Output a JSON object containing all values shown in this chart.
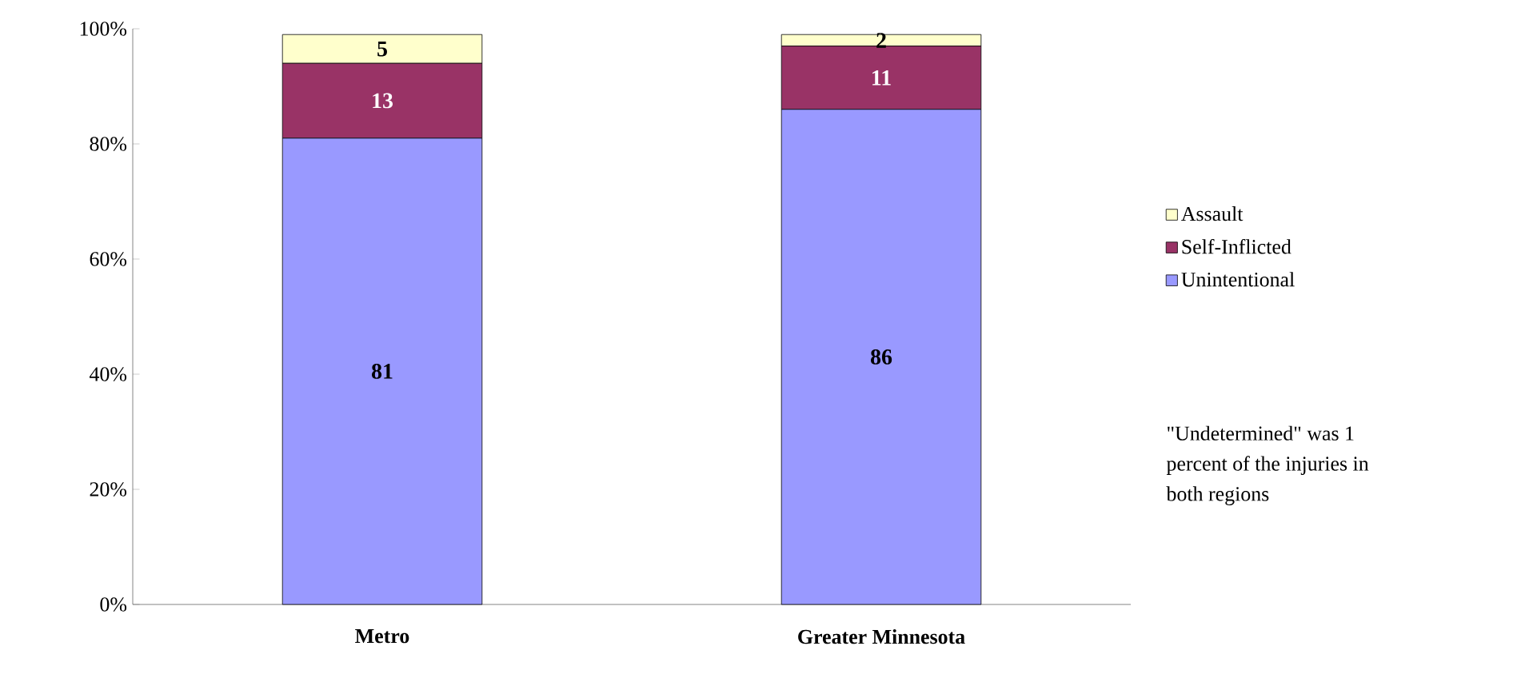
{
  "chart_data": {
    "type": "bar",
    "stacked": true,
    "categories": [
      "Metro",
      "Greater Minnesota"
    ],
    "series": [
      {
        "name": "Unintentional",
        "color": "#9999ff",
        "values": [
          81,
          86
        ]
      },
      {
        "name": "Self-Inflicted",
        "color": "#993366",
        "values": [
          13,
          11
        ]
      },
      {
        "name": "Assault",
        "color": "#ffffcc",
        "values": [
          5,
          2
        ]
      }
    ],
    "ylim": [
      0,
      100
    ],
    "yticks": [
      {
        "value": 0,
        "label": "0%"
      },
      {
        "value": 20,
        "label": "20%"
      },
      {
        "value": 40,
        "label": "40%"
      },
      {
        "value": 60,
        "label": "60%"
      },
      {
        "value": 80,
        "label": "80%"
      },
      {
        "value": 100,
        "label": "100%"
      }
    ],
    "data_labels": true,
    "grid": false,
    "legend": "right",
    "annotations": [
      "\"Undetermined\" was 1 percent of the injuries in both regions"
    ]
  }
}
